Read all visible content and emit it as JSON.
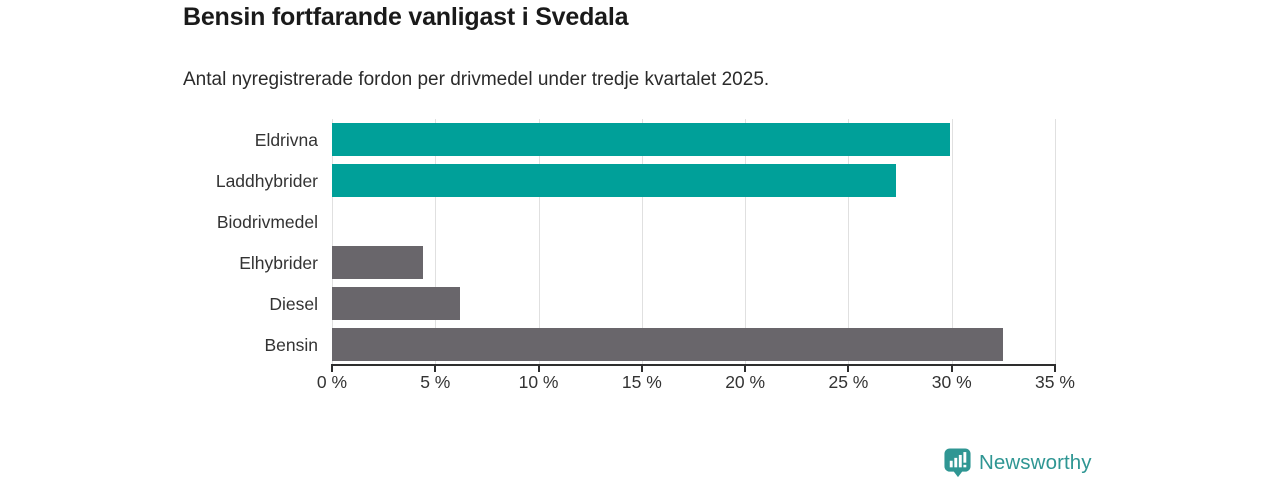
{
  "chart_data": {
    "type": "bar",
    "orientation": "horizontal",
    "title": "Bensin fortfarande vanligast i Svedala",
    "subtitle": "Antal nyregistrerade fordon per drivmedel under tredje kvartalet 2025.",
    "categories": [
      "Eldrivna",
      "Laddhybrider",
      "Biodrivmedel",
      "Elhybrider",
      "Diesel",
      "Bensin"
    ],
    "values": [
      29.9,
      27.3,
      0,
      4.4,
      6.2,
      32.5
    ],
    "bar_colors": [
      "#00a099",
      "#00a099",
      "#00a099",
      "#69666b",
      "#69666b",
      "#69666b"
    ],
    "value_unit": "%",
    "xlim": [
      0,
      35
    ],
    "x_ticks": [
      0,
      5,
      10,
      15,
      20,
      25,
      30,
      35
    ],
    "x_tick_labels": [
      "0 %",
      "5 %",
      "10 %",
      "15 %",
      "20 %",
      "25 %",
      "30 %",
      "35 %"
    ],
    "grid": true,
    "legend": false
  },
  "colors": {
    "teal_series": "#00a099",
    "gray_series": "#69666b",
    "brand_teal": "#2f9693",
    "title_text": "#1a1a1a",
    "subtitle_text": "#2b2b2b",
    "axis_text": "#333333",
    "axis_line": "#2e2e2e",
    "gridline": "#e0e0e0",
    "background": "#ffffff"
  },
  "footer": {
    "brand": "Newsworthy"
  }
}
